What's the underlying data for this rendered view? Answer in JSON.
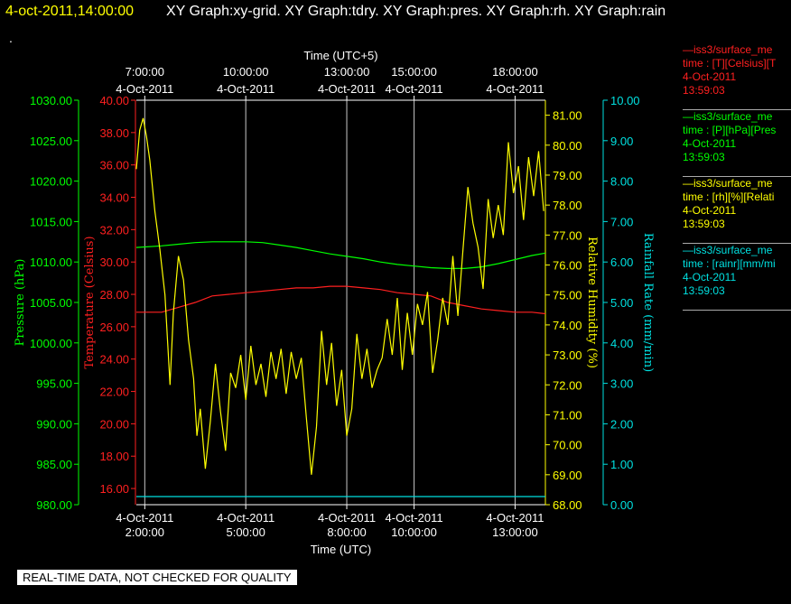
{
  "header": {
    "date_time": "4-oct-2011,14:00:00",
    "titles": "XY Graph:xy-grid.  XY Graph:tdry.  XY Graph:pres.  XY Graph:rh.  XY Graph:rain",
    "dot": "."
  },
  "banner": "REAL-TIME DATA, NOT CHECKED FOR QUALITY",
  "legend": [
    {
      "name": "—iss3/surface_me",
      "var": "time : [T][Celsius][T",
      "date": "4-Oct-2011",
      "time": "13:59:03",
      "color": "#ff2020"
    },
    {
      "name": "—iss3/surface_me",
      "var": "time : [P][hPa][Pres",
      "date": "4-Oct-2011",
      "time": "13:59:03",
      "color": "#00ff00"
    },
    {
      "name": "—iss3/surface_me",
      "var": "time : [rh][%][Relati",
      "date": "4-Oct-2011",
      "time": "13:59:03",
      "color": "#ffff00"
    },
    {
      "name": "—iss3/surface_me",
      "var": "time : [rainr][mm/mi",
      "date": "4-Oct-2011",
      "time": "13:59:03",
      "color": "#00e0e0"
    }
  ],
  "chart_data": {
    "type": "line",
    "xlabel_bottom": "Time (UTC)",
    "xlabel_top": "Time (UTC+5)",
    "xrange_hours_utc": [
      1.75,
      13.9
    ],
    "bottom_ticks": [
      {
        "h": 2,
        "date": "4-Oct-2011",
        "time": "2:00:00"
      },
      {
        "h": 5,
        "date": "4-Oct-2011",
        "time": "5:00:00"
      },
      {
        "h": 8,
        "date": "4-Oct-2011",
        "time": "8:00:00"
      },
      {
        "h": 10,
        "date": "4-Oct-2011",
        "time": "10:00:00"
      },
      {
        "h": 13,
        "date": "4-Oct-2011",
        "time": "13:00:00"
      }
    ],
    "top_ticks": [
      {
        "h": 2,
        "time": "7:00:00",
        "date": "4-Oct-2011"
      },
      {
        "h": 5,
        "time": "10:00:00",
        "date": "4-Oct-2011"
      },
      {
        "h": 8,
        "time": "13:00:00",
        "date": "4-Oct-2011"
      },
      {
        "h": 10,
        "time": "15:00:00",
        "date": "4-Oct-2011"
      },
      {
        "h": 13,
        "time": "18:00:00",
        "date": "4-Oct-2011"
      }
    ],
    "axes": {
      "pressure": {
        "label": "Pressure (hPa)",
        "color": "#00ff00",
        "range": [
          980,
          1030
        ],
        "ticks": [
          "980.00",
          "985.00",
          "990.00",
          "995.00",
          "1000.00",
          "1005.00",
          "1010.00",
          "1015.00",
          "1020.00",
          "1025.00",
          "1030.00"
        ]
      },
      "temperature": {
        "label": "Temperature (Celsius)",
        "color": "#ff2020",
        "range": [
          15,
          40
        ],
        "ticks": [
          "16.00",
          "18.00",
          "20.00",
          "22.00",
          "24.00",
          "26.00",
          "28.00",
          "30.00",
          "32.00",
          "34.00",
          "36.00",
          "38.00",
          "40.00"
        ]
      },
      "humidity": {
        "label": "Relative Humidity (%)",
        "color": "#ffff00",
        "range": [
          68,
          81.5
        ],
        "ticks": [
          "68.00",
          "69.00",
          "70.00",
          "71.00",
          "72.00",
          "73.00",
          "74.00",
          "75.00",
          "76.00",
          "77.00",
          "78.00",
          "79.00",
          "80.00",
          "81.00"
        ]
      },
      "rain": {
        "label": "Rainfall Rate (mm/min)",
        "color": "#00e0e0",
        "range": [
          0,
          10
        ],
        "ticks": [
          "0.00",
          "1.00",
          "2.00",
          "3.00",
          "4.00",
          "5.00",
          "6.00",
          "7.00",
          "8.00",
          "9.00",
          "10.00"
        ]
      }
    },
    "series": [
      {
        "name": "T",
        "axis": "temperature",
        "color": "#ff2020",
        "x": [
          1.75,
          2.5,
          3,
          3.5,
          4,
          4.5,
          5,
          5.5,
          6,
          6.5,
          7,
          7.5,
          8,
          8.5,
          9,
          9.5,
          10,
          10.5,
          11,
          11.5,
          12,
          12.5,
          13,
          13.5,
          13.9
        ],
        "y": [
          26.9,
          26.9,
          27.2,
          27.5,
          27.9,
          28.0,
          28.1,
          28.2,
          28.3,
          28.4,
          28.4,
          28.5,
          28.5,
          28.4,
          28.3,
          28.1,
          28.0,
          27.9,
          27.5,
          27.3,
          27.1,
          27.0,
          26.9,
          26.9,
          26.8
        ]
      },
      {
        "name": "P",
        "axis": "pressure",
        "color": "#00ff00",
        "x": [
          1.75,
          2.5,
          3,
          3.5,
          4,
          4.5,
          5,
          5.5,
          6,
          6.5,
          7,
          7.5,
          8,
          8.5,
          9,
          9.5,
          10,
          10.5,
          11,
          11.5,
          12,
          12.5,
          13,
          13.5,
          13.9
        ],
        "y": [
          1011.8,
          1012.0,
          1012.2,
          1012.4,
          1012.5,
          1012.5,
          1012.5,
          1012.4,
          1012.1,
          1011.8,
          1011.4,
          1011.0,
          1010.7,
          1010.4,
          1010.0,
          1009.7,
          1009.5,
          1009.3,
          1009.2,
          1009.2,
          1009.4,
          1009.8,
          1010.3,
          1010.8,
          1011.1
        ]
      },
      {
        "name": "rh",
        "axis": "humidity",
        "color": "#ffff00",
        "x": [
          1.75,
          1.85,
          1.95,
          2.05,
          2.15,
          2.3,
          2.45,
          2.6,
          2.75,
          2.85,
          3.0,
          3.15,
          3.3,
          3.45,
          3.55,
          3.65,
          3.8,
          3.95,
          4.1,
          4.25,
          4.4,
          4.55,
          4.7,
          4.85,
          5.0,
          5.15,
          5.3,
          5.45,
          5.6,
          5.75,
          5.9,
          6.05,
          6.2,
          6.35,
          6.5,
          6.65,
          6.8,
          6.95,
          7.1,
          7.25,
          7.4,
          7.55,
          7.7,
          7.85,
          8.0,
          8.15,
          8.3,
          8.45,
          8.6,
          8.75,
          8.9,
          9.05,
          9.2,
          9.35,
          9.5,
          9.65,
          9.8,
          9.95,
          10.1,
          10.25,
          10.4,
          10.55,
          10.7,
          10.85,
          11.0,
          11.15,
          11.3,
          11.45,
          11.6,
          11.75,
          11.9,
          12.05,
          12.2,
          12.35,
          12.5,
          12.65,
          12.8,
          12.95,
          13.1,
          13.25,
          13.4,
          13.55,
          13.7,
          13.85
        ],
        "y": [
          79.2,
          80.5,
          80.9,
          80.3,
          79.5,
          77.8,
          76.5,
          75.0,
          72.0,
          74.4,
          76.3,
          75.5,
          73.5,
          72.2,
          70.3,
          71.2,
          69.2,
          70.8,
          72.7,
          71.1,
          69.8,
          72.4,
          71.9,
          73.0,
          71.5,
          73.3,
          72.0,
          72.7,
          71.6,
          73.1,
          72.2,
          73.2,
          71.7,
          73.1,
          72.2,
          72.9,
          70.9,
          69.0,
          70.6,
          73.8,
          72.0,
          73.4,
          71.3,
          72.5,
          70.3,
          71.2,
          73.7,
          72.2,
          73.2,
          71.9,
          72.5,
          72.9,
          74.2,
          73.0,
          74.9,
          72.5,
          74.4,
          73.0,
          74.7,
          74.0,
          75.1,
          72.4,
          73.5,
          74.9,
          74.0,
          76.3,
          74.3,
          76.5,
          78.6,
          77.4,
          76.6,
          75.2,
          78.2,
          76.9,
          78.0,
          77.0,
          80.1,
          78.4,
          79.3,
          77.5,
          79.6,
          78.3,
          79.8,
          77.8
        ]
      },
      {
        "name": "rainr",
        "axis": "rain",
        "color": "#00e0e0",
        "x": [
          1.75,
          13.9
        ],
        "y": [
          0.2,
          0.2
        ]
      }
    ]
  }
}
